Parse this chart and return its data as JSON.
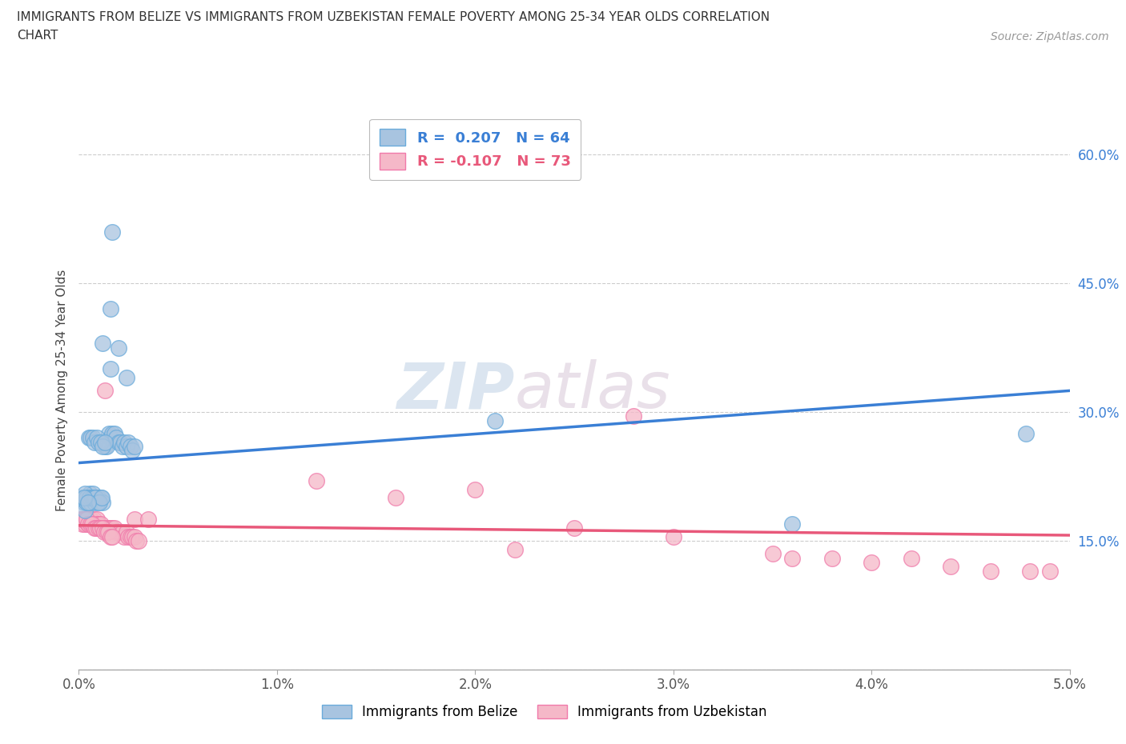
{
  "title_line1": "IMMIGRANTS FROM BELIZE VS IMMIGRANTS FROM UZBEKISTAN FEMALE POVERTY AMONG 25-34 YEAR OLDS CORRELATION",
  "title_line2": "CHART",
  "source_text": "Source: ZipAtlas.com",
  "ylabel": "Female Poverty Among 25-34 Year Olds",
  "xlim": [
    0.0,
    0.05
  ],
  "ylim": [
    0.0,
    0.65
  ],
  "xticks": [
    0.0,
    0.01,
    0.02,
    0.03,
    0.04,
    0.05
  ],
  "xticklabels": [
    "0.0%",
    "1.0%",
    "2.0%",
    "3.0%",
    "4.0%",
    "5.0%"
  ],
  "yticks": [
    0.0,
    0.15,
    0.3,
    0.45,
    0.6
  ],
  "yticklabels": [
    "",
    "15.0%",
    "30.0%",
    "45.0%",
    "60.0%"
  ],
  "belize_color": "#a8c4e0",
  "belize_edge_color": "#6aabdb",
  "uzbekistan_color": "#f5b8c8",
  "uzbekistan_edge_color": "#f07aaa",
  "belize_line_color": "#3a7fd5",
  "uzbekistan_line_color": "#e8587a",
  "watermark_zip": "ZIP",
  "watermark_atlas": "atlas",
  "legend_label_belize": "R =  0.207   N = 64",
  "legend_label_uzbekistan": "R = -0.107   N = 73",
  "belize_x": [
    0.0002,
    0.00025,
    0.0003,
    0.00035,
    0.0004,
    0.00045,
    0.0005,
    0.00055,
    0.0006,
    0.00065,
    0.0007,
    0.00075,
    0.0008,
    0.00085,
    0.0009,
    0.00095,
    0.001,
    0.0011,
    0.0012,
    0.0013,
    0.0014,
    0.0015,
    0.0016,
    0.0017,
    0.0018,
    0.0019,
    0.002,
    0.0021,
    0.0022,
    0.0023,
    0.0024,
    0.0025,
    0.0026,
    0.0027,
    0.0028,
    0.0005,
    0.0006,
    0.0007,
    0.0008,
    0.0009,
    0.001,
    0.0011,
    0.0012,
    0.0013,
    0.0003,
    0.0004,
    0.00055,
    0.00065,
    0.00075,
    0.00085,
    0.00095,
    0.00105,
    0.00115,
    0.00025,
    0.00045,
    0.0012,
    0.0016,
    0.002,
    0.0016,
    0.0024,
    0.0478,
    0.0017,
    0.036,
    0.021
  ],
  "belize_y": [
    0.2,
    0.195,
    0.185,
    0.2,
    0.195,
    0.2,
    0.2,
    0.205,
    0.195,
    0.2,
    0.205,
    0.2,
    0.195,
    0.2,
    0.2,
    0.2,
    0.2,
    0.2,
    0.195,
    0.26,
    0.26,
    0.275,
    0.27,
    0.275,
    0.275,
    0.27,
    0.265,
    0.265,
    0.26,
    0.265,
    0.26,
    0.265,
    0.26,
    0.255,
    0.26,
    0.27,
    0.27,
    0.27,
    0.265,
    0.27,
    0.265,
    0.265,
    0.26,
    0.265,
    0.205,
    0.2,
    0.2,
    0.2,
    0.2,
    0.2,
    0.195,
    0.195,
    0.2,
    0.2,
    0.195,
    0.38,
    0.42,
    0.375,
    0.35,
    0.34,
    0.275,
    0.51,
    0.17,
    0.29
  ],
  "uzbekistan_x": [
    0.0001,
    0.0002,
    0.00025,
    0.0003,
    0.00035,
    0.0004,
    0.00045,
    0.0005,
    0.00055,
    0.0006,
    0.00065,
    0.0007,
    0.00075,
    0.0008,
    0.00085,
    0.0009,
    0.00095,
    0.001,
    0.0011,
    0.0012,
    0.0013,
    0.0014,
    0.0015,
    0.0016,
    0.0017,
    0.0018,
    0.0019,
    0.002,
    0.0021,
    0.0022,
    0.0023,
    0.0024,
    0.0025,
    0.0026,
    0.0027,
    0.0028,
    0.0029,
    0.003,
    0.00015,
    0.00028,
    0.00038,
    0.00048,
    0.00058,
    0.00068,
    0.00078,
    0.00088,
    0.00098,
    0.00108,
    0.00118,
    0.00128,
    0.00138,
    0.00148,
    0.00158,
    0.00168,
    0.0013,
    0.0028,
    0.0035,
    0.016,
    0.02,
    0.025,
    0.03,
    0.035,
    0.036,
    0.038,
    0.04,
    0.042,
    0.044,
    0.046,
    0.048,
    0.049,
    0.028,
    0.012,
    0.022
  ],
  "uzbekistan_y": [
    0.175,
    0.17,
    0.175,
    0.17,
    0.175,
    0.175,
    0.17,
    0.175,
    0.17,
    0.175,
    0.17,
    0.17,
    0.175,
    0.17,
    0.17,
    0.175,
    0.17,
    0.17,
    0.17,
    0.165,
    0.165,
    0.165,
    0.165,
    0.165,
    0.165,
    0.165,
    0.16,
    0.16,
    0.16,
    0.16,
    0.155,
    0.16,
    0.155,
    0.155,
    0.155,
    0.155,
    0.15,
    0.15,
    0.175,
    0.175,
    0.175,
    0.17,
    0.17,
    0.17,
    0.165,
    0.165,
    0.165,
    0.165,
    0.165,
    0.16,
    0.16,
    0.16,
    0.155,
    0.155,
    0.325,
    0.175,
    0.175,
    0.2,
    0.21,
    0.165,
    0.155,
    0.135,
    0.13,
    0.13,
    0.125,
    0.13,
    0.12,
    0.115,
    0.115,
    0.115,
    0.295,
    0.22,
    0.14
  ]
}
